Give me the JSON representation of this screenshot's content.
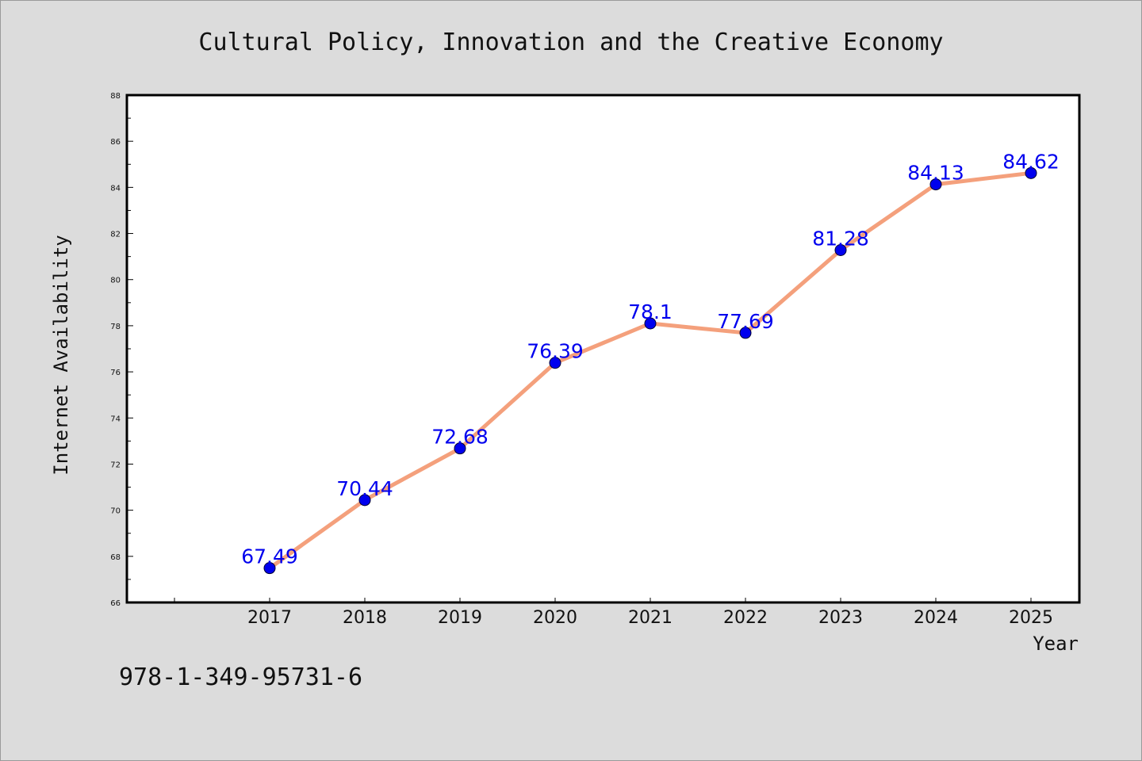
{
  "chart_data": {
    "type": "line",
    "title": "Cultural Policy, Innovation and the Creative Economy",
    "xlabel": "Year",
    "ylabel": "Internet Availability",
    "categories": [
      "2017",
      "2018",
      "2019",
      "2020",
      "2021",
      "2022",
      "2023",
      "2024",
      "2025"
    ],
    "series": [
      {
        "values": [
          67.49,
          70.44,
          72.68,
          76.39,
          78.1,
          77.69,
          81.28,
          84.13,
          84.62
        ],
        "labels": [
          "67.49",
          "70.44",
          "72.68",
          "76.39",
          "78.1",
          "77.69",
          "81.28",
          "84.13",
          "84.62"
        ],
        "line_color": "#f4a07c",
        "marker_color": "#0000ee",
        "label_color": "#0000ee"
      }
    ],
    "ylim": [
      66,
      88
    ],
    "yticks": [
      "66",
      "68",
      "70",
      "72",
      "74",
      "76",
      "78",
      "80",
      "82",
      "84",
      "86",
      "88"
    ],
    "grid": false,
    "legend": "none"
  },
  "footer": {
    "isbn": "978-1-349-95731-6"
  }
}
